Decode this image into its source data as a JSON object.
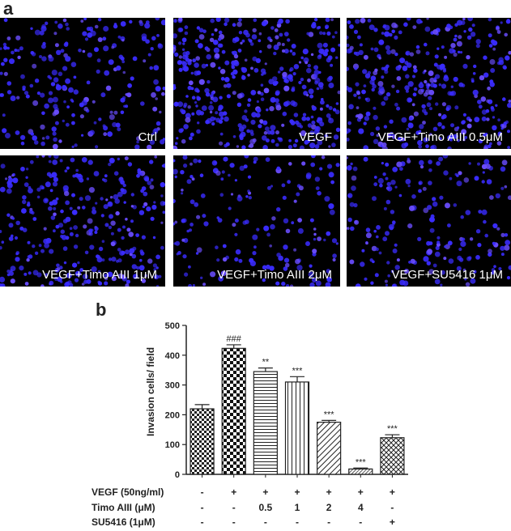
{
  "panel_a": {
    "letter": "a",
    "images": [
      {
        "caption": "Ctrl",
        "density": 230
      },
      {
        "caption": "VEGF",
        "density": 420
      },
      {
        "caption": "VEGF+Timo AIII  0.5μM",
        "density": 350
      },
      {
        "caption": "VEGF+Timo AIII  1μM",
        "density": 310
      },
      {
        "caption": "VEGF+Timo AIII  2μM",
        "density": 175
      },
      {
        "caption": "VEGF+SU5416  1μM",
        "density": 200
      }
    ],
    "colors": {
      "background": "#000000",
      "nucleus": "#3a2cff",
      "nucleus_bright": "#6a4dff"
    }
  },
  "panel_b_letter": "b",
  "chart_data": {
    "type": "bar",
    "ylabel": "Invasion cells/ field",
    "ylim": [
      0,
      500
    ],
    "yticks": [
      0,
      100,
      200,
      300,
      400,
      500
    ],
    "values": [
      220,
      423,
      345,
      310,
      175,
      18,
      123
    ],
    "errors": [
      14,
      12,
      12,
      18,
      6,
      3,
      10
    ],
    "annotations": [
      "",
      "###",
      "**",
      "***",
      "***",
      "***",
      "***"
    ],
    "patterns": [
      "checker-small",
      "checker-large",
      "horizontal",
      "vertical",
      "diagonal",
      "diagonal-dense",
      "crosshatch"
    ],
    "conditions": [
      {
        "label": "VEGF (50ng/ml)",
        "values": [
          "-",
          "+",
          "+",
          "+",
          "+",
          "+",
          "+"
        ]
      },
      {
        "label": "Timo AIII (μM)",
        "values": [
          "-",
          "-",
          "0.5",
          "1",
          "2",
          "4",
          "-"
        ]
      },
      {
        "label": "SU5416 (1μM)",
        "values": [
          "-",
          "-",
          "-",
          "-",
          "-",
          "-",
          "+"
        ]
      }
    ],
    "grid": false
  }
}
